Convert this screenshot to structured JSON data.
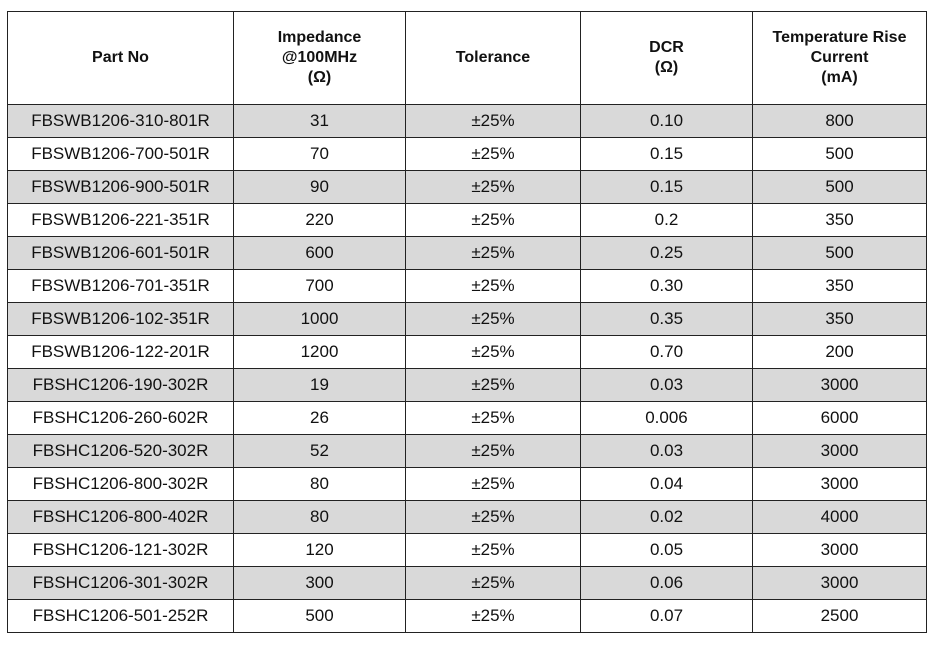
{
  "table": {
    "headers": [
      [
        "Part No"
      ],
      [
        "Impedance",
        "@100MHz",
        "(Ω)"
      ],
      [
        "Tolerance"
      ],
      [
        "DCR",
        "(Ω)"
      ],
      [
        "Temperature Rise",
        "Current",
        "(mA)"
      ]
    ],
    "rows": [
      [
        "FBSWB1206-310-801R",
        "31",
        "±25%",
        "0.10",
        "800"
      ],
      [
        "FBSWB1206-700-501R",
        "70",
        "±25%",
        "0.15",
        "500"
      ],
      [
        "FBSWB1206-900-501R",
        "90",
        "±25%",
        "0.15",
        "500"
      ],
      [
        "FBSWB1206-221-351R",
        "220",
        "±25%",
        "0.2",
        "350"
      ],
      [
        "FBSWB1206-601-501R",
        "600",
        "±25%",
        "0.25",
        "500"
      ],
      [
        "FBSWB1206-701-351R",
        "700",
        "±25%",
        "0.30",
        "350"
      ],
      [
        "FBSWB1206-102-351R",
        "1000",
        "±25%",
        "0.35",
        "350"
      ],
      [
        "FBSWB1206-122-201R",
        "1200",
        "±25%",
        "0.70",
        "200"
      ],
      [
        "FBSHC1206-190-302R",
        "19",
        "±25%",
        "0.03",
        "3000"
      ],
      [
        "FBSHC1206-260-602R",
        "26",
        "±25%",
        "0.006",
        "6000"
      ],
      [
        "FBSHC1206-520-302R",
        "52",
        "±25%",
        "0.03",
        "3000"
      ],
      [
        "FBSHC1206-800-302R",
        "80",
        "±25%",
        "0.04",
        "3000"
      ],
      [
        "FBSHC1206-800-402R",
        "80",
        "±25%",
        "0.02",
        "4000"
      ],
      [
        "FBSHC1206-121-302R",
        "120",
        "±25%",
        "0.05",
        "3000"
      ],
      [
        "FBSHC1206-301-302R",
        "300",
        "±25%",
        "0.06",
        "3000"
      ],
      [
        "FBSHC1206-501-252R",
        "500",
        "±25%",
        "0.07",
        "2500"
      ]
    ]
  }
}
